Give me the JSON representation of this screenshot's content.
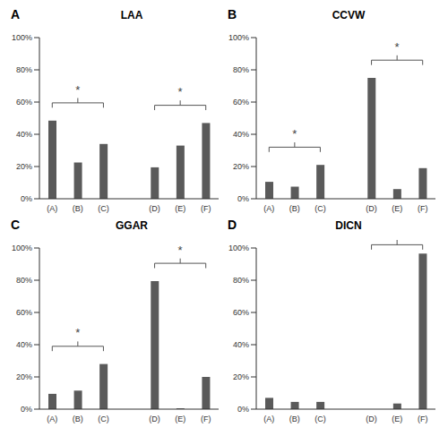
{
  "chart_data": [
    {
      "type": "bar",
      "panel": "A",
      "title": "LAA",
      "categories": [
        "(A)",
        "(B)",
        "(C)",
        null,
        "(D)",
        "(E)",
        "(F)"
      ],
      "values": [
        48.5,
        22.5,
        34,
        null,
        19.5,
        33,
        47
      ],
      "color": "#5a5a5a",
      "ylim": [
        0,
        100
      ],
      "yticks": [
        {
          "value": 0,
          "label": "0%"
        },
        {
          "value": 20,
          "label": "20%"
        },
        {
          "value": 40,
          "label": "40%"
        },
        {
          "value": 60,
          "label": "60%"
        },
        {
          "value": 80,
          "label": "80%"
        },
        {
          "value": 100,
          "label": "100%"
        }
      ],
      "grid": false,
      "annotations": [
        {
          "text": "*",
          "from": "(A)",
          "to": "(C)"
        },
        {
          "text": "*",
          "from": "(D)",
          "to": "(F)"
        }
      ]
    },
    {
      "type": "bar",
      "panel": "B",
      "title": "CCVW",
      "categories": [
        "(A)",
        "(B)",
        "(C)",
        null,
        "(D)",
        "(E)",
        "(F)"
      ],
      "values": [
        10.5,
        7.5,
        21,
        null,
        75,
        6,
        19
      ],
      "color": "#5a5a5a",
      "ylim": [
        0,
        100
      ],
      "yticks": [
        {
          "value": 0,
          "label": "0%"
        },
        {
          "value": 20,
          "label": "20%"
        },
        {
          "value": 40,
          "label": "40%"
        },
        {
          "value": 60,
          "label": "60%"
        },
        {
          "value": 80,
          "label": "80%"
        },
        {
          "value": 100,
          "label": "100%"
        }
      ],
      "grid": false,
      "annotations": [
        {
          "text": "*",
          "from": "(A)",
          "to": "(C)"
        },
        {
          "text": "*",
          "from": "(D)",
          "to": "(F)"
        }
      ]
    },
    {
      "type": "bar",
      "panel": "C",
      "title": "GGAR",
      "categories": [
        "(A)",
        "(B)",
        "(C)",
        null,
        "(D)",
        "(E)",
        "(F)"
      ],
      "values": [
        9.5,
        11.5,
        28,
        null,
        79.5,
        0.5,
        20
      ],
      "color": "#5a5a5a",
      "ylim": [
        0,
        100
      ],
      "yticks": [
        {
          "value": 0,
          "label": "0%"
        },
        {
          "value": 20,
          "label": "20%"
        },
        {
          "value": 40,
          "label": "40%"
        },
        {
          "value": 60,
          "label": "60%"
        },
        {
          "value": 80,
          "label": "80%"
        },
        {
          "value": 100,
          "label": "100%"
        }
      ],
      "grid": false,
      "annotations": [
        {
          "text": "*",
          "from": "(A)",
          "to": "(C)"
        },
        {
          "text": "*",
          "from": "(D)",
          "to": "(F)"
        }
      ]
    },
    {
      "type": "bar",
      "panel": "D",
      "title": "DICN",
      "categories": [
        "(A)",
        "(B)",
        "(C)",
        null,
        "(D)",
        "(E)",
        "(F)"
      ],
      "values": [
        7,
        4.5,
        4.5,
        null,
        0,
        3.5,
        96.5
      ],
      "color": "#5a5a5a",
      "ylim": [
        0,
        100
      ],
      "yticks": [
        {
          "value": 0,
          "label": "0%"
        },
        {
          "value": 20,
          "label": "20%"
        },
        {
          "value": 40,
          "label": "40%"
        },
        {
          "value": 60,
          "label": "60%"
        },
        {
          "value": 80,
          "label": "80%"
        },
        {
          "value": 100,
          "label": "100%"
        }
      ],
      "grid": false,
      "annotations": [
        {
          "text": "*",
          "from": "(D)",
          "to": "(F)"
        }
      ]
    }
  ]
}
